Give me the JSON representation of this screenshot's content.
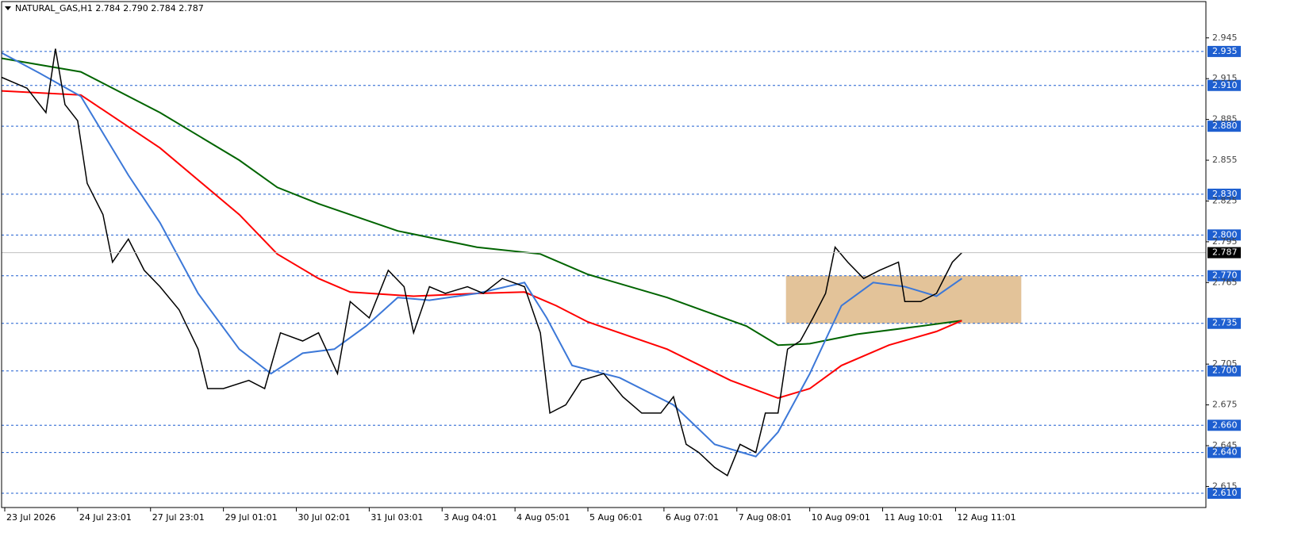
{
  "chart_data": {
    "type": "line",
    "title": "NATURAL_GAS,H1  2.784 2.790 2.784 2.787",
    "xlim": [
      0,
      380
    ],
    "ylim": [
      2.5995,
      2.9717
    ],
    "xticks": [
      {
        "value": 1,
        "label": "23 Jul 2026"
      },
      {
        "value": 24,
        "label": "24 Jul 23:01"
      },
      {
        "value": 47,
        "label": "27 Jul 23:01"
      },
      {
        "value": 70,
        "label": "29 Jul 01:01"
      },
      {
        "value": 93,
        "label": "30 Jul 02:01"
      },
      {
        "value": 116,
        "label": "31 Jul 03:01"
      },
      {
        "value": 139,
        "label": "3 Aug 04:01"
      },
      {
        "value": 162,
        "label": "4 Aug 05:01"
      },
      {
        "value": 185,
        "label": "5 Aug 06:01"
      },
      {
        "value": 209,
        "label": "6 Aug 07:01"
      },
      {
        "value": 232,
        "label": "7 Aug 08:01"
      },
      {
        "value": 255,
        "label": "10 Aug 09:01"
      },
      {
        "value": 278,
        "label": "11 Aug 10:01"
      },
      {
        "value": 301,
        "label": "12 Aug 11:01"
      }
    ],
    "yticks": [
      2.945,
      2.915,
      2.885,
      2.855,
      2.825,
      2.795,
      2.765,
      2.705,
      2.675,
      2.645,
      2.615
    ],
    "levels": [
      {
        "value": 2.935,
        "label": "2.935"
      },
      {
        "value": 2.91,
        "label": "2.910"
      },
      {
        "value": 2.88,
        "label": "2.880"
      },
      {
        "value": 2.83,
        "label": "2.830"
      },
      {
        "value": 2.8,
        "label": "2.800"
      },
      {
        "value": 2.77,
        "label": "2.770"
      },
      {
        "value": 2.735,
        "label": "2.735"
      },
      {
        "value": 2.7,
        "label": "2.700"
      },
      {
        "value": 2.66,
        "label": "2.660"
      },
      {
        "value": 2.64,
        "label": "2.640"
      },
      {
        "value": 2.61,
        "label": "2.610"
      }
    ],
    "level_color": "#1e5fd0",
    "current_price": 2.787,
    "zone": {
      "x": [
        247.5,
        321.75
      ],
      "y": [
        2.735,
        2.77
      ],
      "color": "#deb887"
    },
    "series": [
      {
        "color": "#006400",
        "x": [
          0,
          25,
          50,
          75,
          87,
          100,
          125,
          150,
          170,
          185,
          210,
          235,
          245,
          255,
          270,
          290,
          303
        ],
        "values": [
          2.93,
          2.92,
          2.89,
          2.855,
          2.835,
          2.823,
          2.803,
          2.791,
          2.786,
          2.771,
          2.754,
          2.733,
          2.719,
          2.72,
          2.727,
          2.733,
          2.737
        ]
      },
      {
        "color": "#ff0000",
        "x": [
          0,
          25,
          50,
          75,
          87,
          100,
          110,
          130,
          150,
          165,
          175,
          185,
          210,
          230,
          245,
          255,
          265,
          280,
          295,
          303
        ],
        "values": [
          2.906,
          2.903,
          2.864,
          2.815,
          2.786,
          2.768,
          2.758,
          2.755,
          2.757,
          2.758,
          2.748,
          2.736,
          2.716,
          2.693,
          2.68,
          2.687,
          2.704,
          2.719,
          2.729,
          2.737
        ]
      },
      {
        "color": "#3c78d8",
        "x": [
          0,
          12,
          25,
          40,
          50,
          62,
          75,
          85,
          95,
          105,
          115,
          125,
          135,
          150,
          165,
          172,
          180,
          195,
          212,
          225,
          238,
          245,
          255,
          265,
          275,
          285,
          295,
          303
        ],
        "values": [
          2.934,
          2.919,
          2.902,
          2.844,
          2.809,
          2.757,
          2.716,
          2.698,
          2.713,
          2.716,
          2.733,
          2.754,
          2.752,
          2.757,
          2.765,
          2.739,
          2.704,
          2.695,
          2.675,
          2.646,
          2.637,
          2.655,
          2.698,
          2.748,
          2.765,
          2.762,
          2.755,
          2.768
        ]
      },
      {
        "color": "#000000",
        "x": [
          0,
          8,
          14,
          17,
          20,
          24,
          27,
          32,
          35,
          40,
          45,
          50,
          56,
          62,
          65,
          70,
          78,
          83,
          88,
          95,
          100,
          106,
          110,
          116,
          122,
          127,
          130,
          135,
          140,
          147,
          152,
          158,
          165,
          170,
          173,
          178,
          183,
          190,
          196,
          202,
          208,
          212,
          216,
          220,
          225,
          229,
          233,
          238,
          241,
          245,
          248,
          252,
          256,
          260,
          263,
          267,
          272,
          277,
          283,
          285,
          290,
          295,
          300,
          303
        ],
        "values": [
          2.916,
          2.908,
          2.89,
          2.937,
          2.896,
          2.884,
          2.838,
          2.815,
          2.78,
          2.797,
          2.774,
          2.762,
          2.745,
          2.716,
          2.687,
          2.687,
          2.693,
          2.687,
          2.728,
          2.722,
          2.728,
          2.698,
          2.751,
          2.739,
          2.774,
          2.762,
          2.728,
          2.762,
          2.757,
          2.762,
          2.757,
          2.768,
          2.762,
          2.728,
          2.669,
          2.675,
          2.693,
          2.698,
          2.681,
          2.669,
          2.669,
          2.681,
          2.646,
          2.64,
          2.629,
          2.623,
          2.646,
          2.64,
          2.669,
          2.669,
          2.716,
          2.722,
          2.739,
          2.757,
          2.791,
          2.78,
          2.768,
          2.774,
          2.78,
          2.751,
          2.751,
          2.757,
          2.78,
          2.787
        ]
      }
    ]
  }
}
